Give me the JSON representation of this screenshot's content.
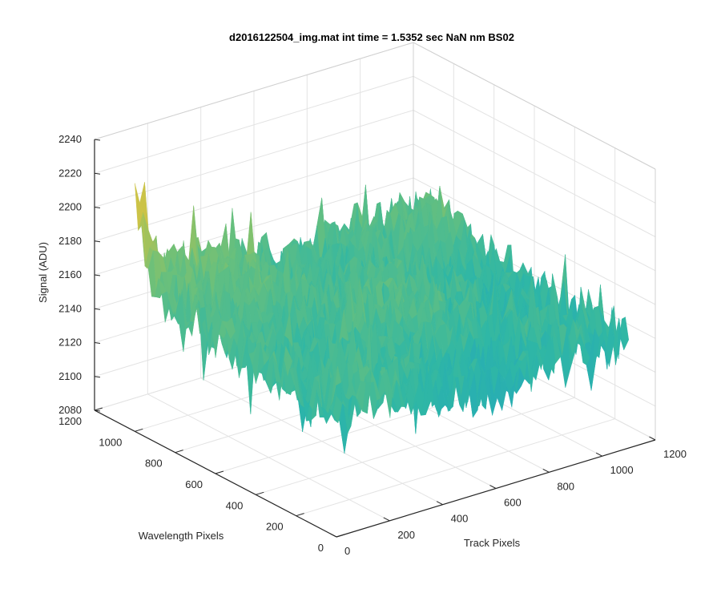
{
  "chart_data": {
    "type": "surface",
    "title": "d2016122504_img.mat int time = 1.5352 sec  NaN nm BS02",
    "xlabel": "Track Pixels",
    "ylabel": "Wavelength Pixels",
    "zlabel": "Signal (ADU)",
    "xlim": [
      0,
      1200
    ],
    "ylim": [
      0,
      1200
    ],
    "zlim": [
      2080,
      2240
    ],
    "xticks": [
      0,
      200,
      400,
      600,
      800,
      1000,
      1200
    ],
    "yticks": [
      0,
      200,
      400,
      600,
      800,
      1000,
      1200
    ],
    "zticks": [
      2080,
      2100,
      2120,
      2140,
      2160,
      2180,
      2200,
      2220,
      2240
    ],
    "xtick_labels": [
      "0",
      "200",
      "400",
      "600",
      "800",
      "1000",
      "1200"
    ],
    "ytick_labels": [
      "0",
      "200",
      "400",
      "600",
      "800",
      "1000",
      "1200"
    ],
    "ztick_labels": [
      "2080",
      "2100",
      "2120",
      "2140",
      "2160",
      "2180",
      "2200",
      "2220",
      "2240"
    ],
    "grid": true,
    "colormap": [
      "#0f7fd1",
      "#1fa3c4",
      "#2fb7a5",
      "#6cc07a",
      "#b8c34e",
      "#ecc23b"
    ],
    "surface_extent": {
      "x": [
        0,
        1100
      ],
      "y": [
        0,
        1000
      ]
    },
    "approx_signal_range": [
      2090,
      2230
    ],
    "approx_mean_signal": 2150,
    "approx_peak": {
      "x": 0,
      "y": 1000,
      "signal": 2230
    }
  }
}
